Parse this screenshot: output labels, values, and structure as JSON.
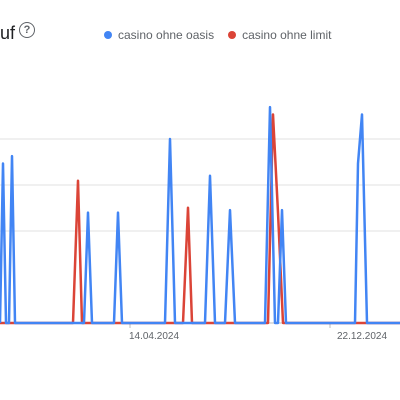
{
  "header": {
    "title": "uf",
    "help_icon": "help-circle-icon",
    "help_glyph": "?"
  },
  "chart_data": {
    "type": "line",
    "title": "uf",
    "x_ticks": [
      "14.04.2024",
      "22.12.2024"
    ],
    "legend_position": "top",
    "grid": true,
    "ylim": [
      0,
      100
    ],
    "series": [
      {
        "name": "casino ohne oasis",
        "color": "#4285f4",
        "points": [
          [
            0,
            0
          ],
          [
            3,
            65
          ],
          [
            6,
            0
          ],
          [
            9,
            0
          ],
          [
            12,
            68
          ],
          [
            15,
            0
          ],
          [
            84,
            0
          ],
          [
            88,
            45
          ],
          [
            92,
            0
          ],
          [
            114,
            0
          ],
          [
            118,
            45
          ],
          [
            122,
            0
          ],
          [
            165,
            0
          ],
          [
            170,
            75
          ],
          [
            175,
            0
          ],
          [
            205,
            0
          ],
          [
            210,
            60
          ],
          [
            215,
            0
          ],
          [
            225,
            0
          ],
          [
            230,
            46
          ],
          [
            235,
            0
          ],
          [
            265,
            0
          ],
          [
            270,
            88
          ],
          [
            275,
            0
          ],
          [
            278,
            0
          ],
          [
            282,
            46
          ],
          [
            286,
            0
          ],
          [
            355,
            0
          ],
          [
            358,
            65
          ],
          [
            362,
            85
          ],
          [
            367,
            0
          ],
          [
            400,
            0
          ]
        ]
      },
      {
        "name": "casino ohne limit",
        "color": "#db4437",
        "points": [
          [
            0,
            0
          ],
          [
            73,
            0
          ],
          [
            78,
            58
          ],
          [
            82,
            0
          ],
          [
            183,
            0
          ],
          [
            188,
            47
          ],
          [
            192,
            0
          ],
          [
            268,
            0
          ],
          [
            273,
            85
          ],
          [
            278,
            45
          ],
          [
            283,
            0
          ],
          [
            400,
            0
          ]
        ]
      }
    ]
  }
}
